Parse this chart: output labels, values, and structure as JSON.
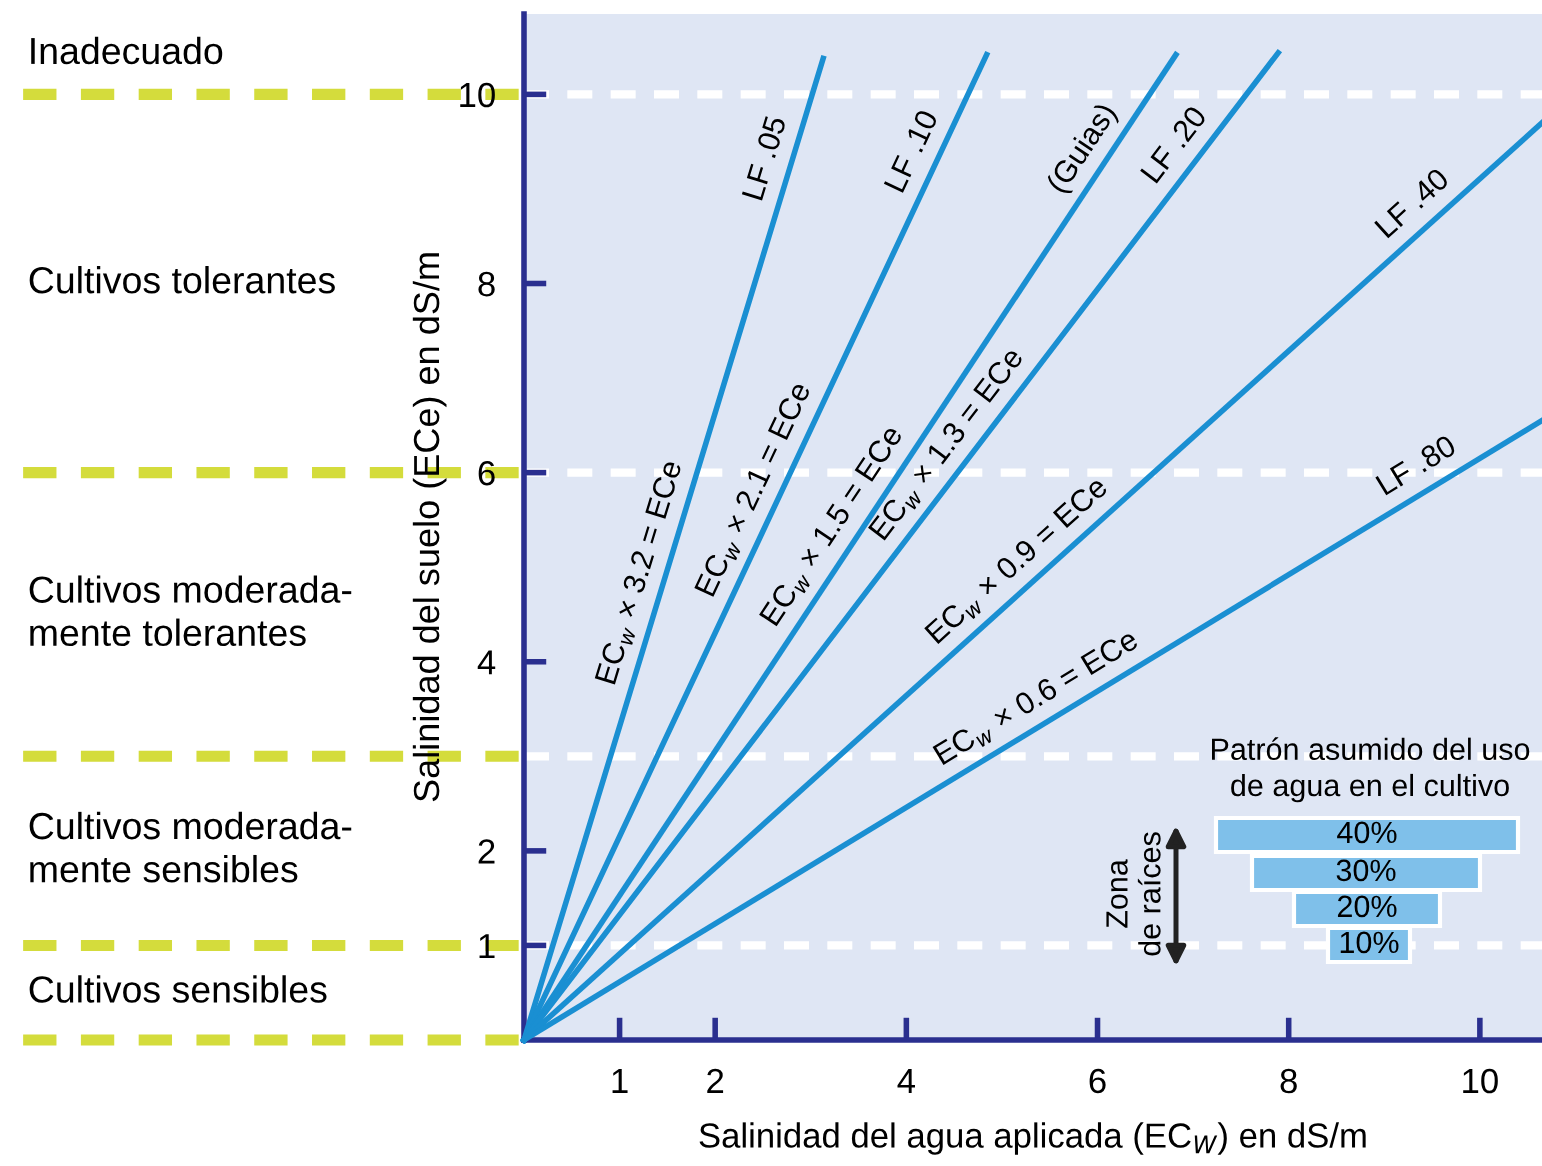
{
  "chart_data": {
    "type": "line",
    "xlabel": "Salinidad del agua aplicada (EC$_{W}$) en dS/m",
    "ylabel": "Salinidad del suelo (ECe) en dS/m",
    "xlim": [
      0,
      10.65
    ],
    "ylim": [
      0,
      10.85
    ],
    "xticks": [
      1,
      2,
      4,
      6,
      8,
      10
    ],
    "yticks": [
      1,
      2,
      4,
      6,
      8,
      10
    ],
    "grid": false,
    "legend": false,
    "marker": "none",
    "line_style": "solid",
    "series": [
      {
        "name": "LF .05",
        "color": "#1a8fd2",
        "x": [
          0,
          3.13
        ],
        "values": [
          0,
          10.38
        ]
      },
      {
        "name": "LF .10",
        "color": "#1a8fd2",
        "x": [
          0,
          4.84
        ],
        "values": [
          0,
          10.42
        ]
      },
      {
        "name": "(Guias)",
        "color": "#1a8fd2",
        "x": [
          0,
          6.82
        ],
        "values": [
          0,
          10.42
        ]
      },
      {
        "name": "LF .20",
        "color": "#1a8fd2",
        "x": [
          0,
          7.89
        ],
        "values": [
          0,
          10.44
        ]
      },
      {
        "name": "LF .40",
        "color": "#1a8fd2",
        "x": [
          0,
          10.65
        ],
        "values": [
          0,
          9.7
        ]
      },
      {
        "name": "LF .80",
        "color": "#1a8fd2",
        "x": [
          0,
          10.65
        ],
        "values": [
          0,
          6.55
        ]
      }
    ],
    "ref_lines": [
      {
        "axis": "y",
        "value": 10,
        "color": "#ffffff",
        "line_style": "dashed"
      },
      {
        "axis": "y",
        "value": 6,
        "color": "#ffffff",
        "line_style": "dashed"
      },
      {
        "axis": "y",
        "value": 3,
        "color": "#ffffff",
        "line_style": "dashed"
      },
      {
        "axis": "y",
        "value": 1,
        "color": "#ffffff",
        "line_style": "dashed"
      }
    ],
    "annotations": [
      {
        "text": "EC$_{w}$ × 3.2 = ECe",
        "x": 1.47,
        "y": 4.86
      },
      {
        "text": "EC$_{w}$ × 2.1 = ECe",
        "x": 2.65,
        "y": 5.7
      },
      {
        "text": "EC$_{w}$ × 1.5 = ECe",
        "x": 3.45,
        "y": 5.28
      },
      {
        "text": "EC$_{w}$ × 1.3 = ECe",
        "x": 4.64,
        "y": 6.13
      },
      {
        "text": "EC$_{w}$ × 0.9 = ECe",
        "x": 5.34,
        "y": 4.86
      },
      {
        "text": "EC$_{w}$ × 0.6 = ECe",
        "x": 5.5,
        "y": 3.38
      },
      "Inadecuado",
      "Cultivos tolerantes",
      "Cultivos moderada-\nmente tolerantes",
      "Cultivos moderada-\nmente sensibles",
      "Cultivos sensibles",
      "Patrón asumido del uso\nde agua en el cultivo",
      "40%",
      "30%",
      "20%",
      "10%",
      "Zona\nde raíces"
    ]
  }
}
